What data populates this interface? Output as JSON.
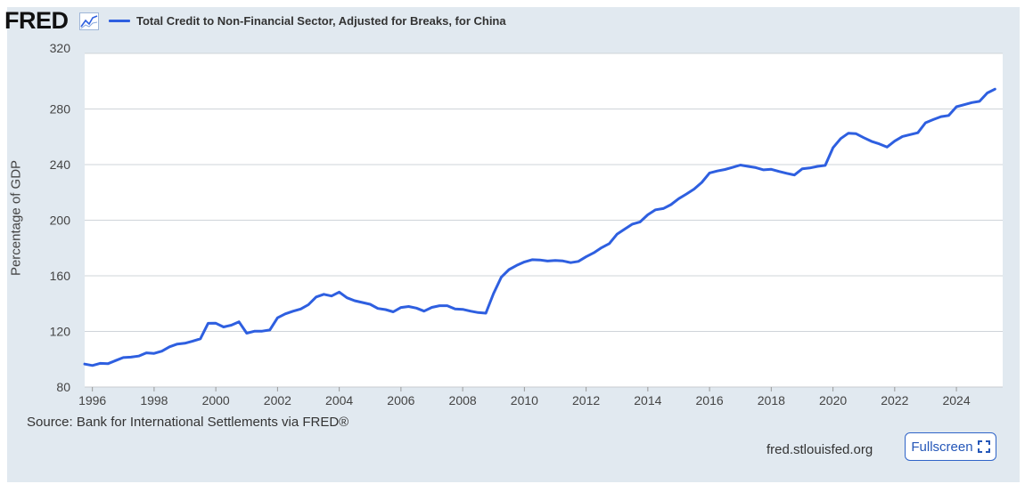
{
  "header": {
    "logo_text": "FRED",
    "logo_icon": "chart-line-icon"
  },
  "chart_data": {
    "type": "line",
    "title": "Total Credit to Non-Financial Sector, Adjusted for Breaks, for China",
    "xlabel": "",
    "ylabel": "Percentage of GDP",
    "ylim": [
      80,
      320
    ],
    "xlim": [
      "1995-10-01",
      "2025-07-01"
    ],
    "y_ticks": [
      80,
      120,
      160,
      200,
      240,
      280,
      320
    ],
    "x_ticks": [
      "1996",
      "1998",
      "2000",
      "2002",
      "2004",
      "2006",
      "2008",
      "2010",
      "2012",
      "2014",
      "2016",
      "2018",
      "2020",
      "2022",
      "2024"
    ],
    "grid": true,
    "legend_position": "top-left",
    "series": [
      {
        "name": "Total Credit to Non-Financial Sector, Adjusted for Breaks, for China",
        "color": "#2e5fe0",
        "x": [
          "1995-10-01",
          "1996-01-01",
          "1996-04-01",
          "1996-07-01",
          "1996-10-01",
          "1997-01-01",
          "1997-04-01",
          "1997-07-01",
          "1997-10-01",
          "1998-01-01",
          "1998-04-01",
          "1998-07-01",
          "1998-10-01",
          "1999-01-01",
          "1999-04-01",
          "1999-07-01",
          "1999-10-01",
          "2000-01-01",
          "2000-04-01",
          "2000-07-01",
          "2000-10-01",
          "2001-01-01",
          "2001-04-01",
          "2001-07-01",
          "2001-10-01",
          "2002-01-01",
          "2002-04-01",
          "2002-07-01",
          "2002-10-01",
          "2003-01-01",
          "2003-04-01",
          "2003-07-01",
          "2003-10-01",
          "2004-01-01",
          "2004-04-01",
          "2004-07-01",
          "2004-10-01",
          "2005-01-01",
          "2005-04-01",
          "2005-07-01",
          "2005-10-01",
          "2006-01-01",
          "2006-04-01",
          "2006-07-01",
          "2006-10-01",
          "2007-01-01",
          "2007-04-01",
          "2007-07-01",
          "2007-10-01",
          "2008-01-01",
          "2008-04-01",
          "2008-07-01",
          "2008-10-01",
          "2009-01-01",
          "2009-04-01",
          "2009-07-01",
          "2009-10-01",
          "2010-01-01",
          "2010-04-01",
          "2010-07-01",
          "2010-10-01",
          "2011-01-01",
          "2011-04-01",
          "2011-07-01",
          "2011-10-01",
          "2012-01-01",
          "2012-04-01",
          "2012-07-01",
          "2012-10-01",
          "2013-01-01",
          "2013-04-01",
          "2013-07-01",
          "2013-10-01",
          "2014-01-01",
          "2014-04-01",
          "2014-07-01",
          "2014-10-01",
          "2015-01-01",
          "2015-04-01",
          "2015-07-01",
          "2015-10-01",
          "2016-01-01",
          "2016-04-01",
          "2016-07-01",
          "2016-10-01",
          "2017-01-01",
          "2017-04-01",
          "2017-07-01",
          "2017-10-01",
          "2018-01-01",
          "2018-04-01",
          "2018-07-01",
          "2018-10-01",
          "2019-01-01",
          "2019-04-01",
          "2019-07-01",
          "2019-10-01",
          "2020-01-01",
          "2020-04-01",
          "2020-07-01",
          "2020-10-01",
          "2021-01-01",
          "2021-04-01",
          "2021-07-01",
          "2021-10-01",
          "2022-01-01",
          "2022-04-01",
          "2022-07-01",
          "2022-10-01",
          "2023-01-01",
          "2023-04-01",
          "2023-07-01",
          "2023-10-01",
          "2024-01-01",
          "2024-04-01",
          "2024-07-01",
          "2024-10-01",
          "2025-01-01",
          "2025-04-01"
        ],
        "values": [
          96.5,
          95.5,
          97.0,
          96.8,
          99.0,
          101.2,
          101.5,
          102.3,
          104.6,
          104.2,
          105.8,
          108.9,
          110.9,
          111.5,
          113.0,
          114.7,
          125.8,
          125.9,
          123.2,
          124.5,
          126.9,
          118.7,
          120.1,
          120.2,
          121.0,
          129.8,
          132.6,
          134.5,
          136.1,
          139.2,
          144.8,
          146.7,
          145.5,
          148.3,
          144.2,
          142.1,
          140.8,
          139.5,
          136.5,
          135.7,
          134.1,
          137.2,
          137.9,
          136.8,
          134.6,
          137.3,
          138.5,
          138.5,
          136.2,
          135.9,
          134.6,
          133.6,
          133.1,
          147.2,
          159.0,
          164.5,
          167.5,
          170.0,
          171.6,
          171.4,
          170.6,
          171.0,
          170.7,
          169.5,
          170.4,
          173.7,
          176.6,
          180.2,
          183.2,
          189.9,
          193.6,
          197.2,
          198.8,
          203.9,
          207.5,
          208.4,
          211.2,
          215.5,
          218.8,
          222.4,
          227.2,
          234.0,
          235.4,
          236.5,
          238.0,
          239.7,
          238.7,
          237.8,
          236.2,
          236.6,
          235.1,
          233.7,
          232.5,
          236.9,
          237.6,
          238.7,
          239.4,
          252.1,
          258.7,
          262.6,
          262.2,
          259.3,
          256.7,
          254.9,
          252.6,
          256.9,
          260.2,
          261.6,
          262.9,
          270.1,
          272.4,
          274.5,
          275.3,
          281.6,
          283.1,
          284.6,
          285.5,
          291.5,
          294.3
        ]
      }
    ]
  },
  "footer": {
    "source": "Source: Bank for International Settlements via FRED®",
    "site": "fred.stlouisfed.org",
    "fullscreen_label": "Fullscreen",
    "fullscreen_icon": "expand-icon"
  },
  "colors": {
    "frame_background": "#e1e9f0",
    "plot_background": "#ffffff",
    "series_line": "#2e5fe0",
    "button_accent": "#2456b8"
  }
}
